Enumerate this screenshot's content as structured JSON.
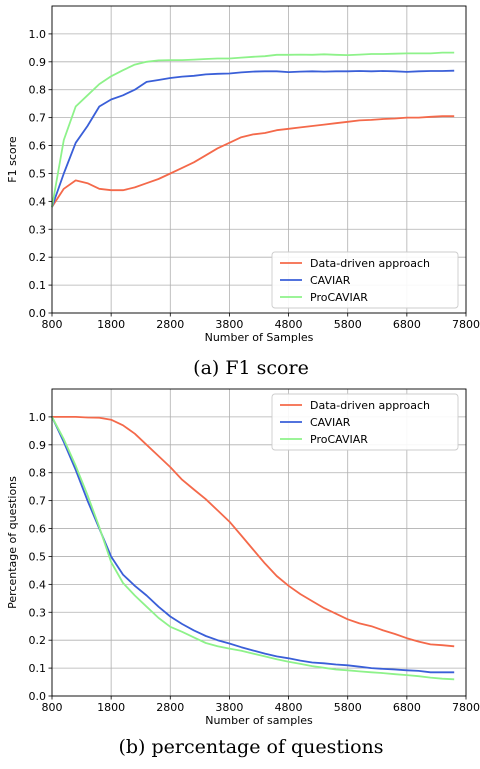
{
  "chart_data": [
    {
      "type": "line",
      "caption": "(a) F1 score",
      "title": "",
      "xlabel": "Number of Samples",
      "ylabel": "F1 score",
      "xlim": [
        800,
        7800
      ],
      "ylim": [
        0.0,
        1.1
      ],
      "xticks": [
        800,
        1800,
        2800,
        3800,
        4800,
        5800,
        6800,
        7800
      ],
      "yticks": [
        0.0,
        0.1,
        0.2,
        0.3,
        0.4,
        0.5,
        0.6,
        0.7,
        0.8,
        0.9,
        1.0
      ],
      "grid": true,
      "legend_position": "lower-right",
      "series": [
        {
          "name": "Data-driven approach",
          "color": "#f4694a",
          "x": [
            800,
            1000,
            1200,
            1400,
            1600,
            1800,
            2000,
            2200,
            2400,
            2600,
            2800,
            3000,
            3200,
            3400,
            3600,
            3800,
            4000,
            4200,
            4400,
            4600,
            4800,
            5000,
            5200,
            5400,
            5600,
            5800,
            6000,
            6200,
            6400,
            6600,
            6800,
            7000,
            7200,
            7400,
            7600
          ],
          "y": [
            0.38,
            0.445,
            0.475,
            0.465,
            0.445,
            0.44,
            0.44,
            0.45,
            0.465,
            0.48,
            0.5,
            0.52,
            0.54,
            0.565,
            0.59,
            0.61,
            0.63,
            0.64,
            0.645,
            0.655,
            0.66,
            0.665,
            0.67,
            0.675,
            0.68,
            0.685,
            0.69,
            0.692,
            0.695,
            0.697,
            0.7,
            0.7,
            0.703,
            0.705,
            0.705
          ]
        },
        {
          "name": "CAVIAR",
          "color": "#3a5fd8",
          "x": [
            800,
            1000,
            1200,
            1400,
            1600,
            1800,
            2000,
            2200,
            2400,
            2600,
            2800,
            3000,
            3200,
            3400,
            3600,
            3800,
            4000,
            4200,
            4400,
            4600,
            4800,
            5000,
            5200,
            5400,
            5600,
            5800,
            6000,
            6200,
            6400,
            6600,
            6800,
            7000,
            7200,
            7400,
            7600
          ],
          "y": [
            0.38,
            0.5,
            0.61,
            0.67,
            0.74,
            0.765,
            0.78,
            0.8,
            0.828,
            0.835,
            0.842,
            0.847,
            0.85,
            0.855,
            0.857,
            0.858,
            0.862,
            0.865,
            0.866,
            0.866,
            0.863,
            0.865,
            0.866,
            0.865,
            0.866,
            0.866,
            0.867,
            0.866,
            0.867,
            0.866,
            0.864,
            0.866,
            0.867,
            0.867,
            0.868
          ]
        },
        {
          "name": "ProCAVIAR",
          "color": "#8ef28a",
          "x": [
            800,
            1000,
            1200,
            1400,
            1600,
            1800,
            2000,
            2200,
            2400,
            2600,
            2800,
            3000,
            3200,
            3400,
            3600,
            3800,
            4000,
            4200,
            4400,
            4600,
            4800,
            5000,
            5200,
            5400,
            5600,
            5800,
            6000,
            6200,
            6400,
            6600,
            6800,
            7000,
            7200,
            7400,
            7600
          ],
          "y": [
            0.38,
            0.62,
            0.74,
            0.78,
            0.82,
            0.848,
            0.87,
            0.89,
            0.9,
            0.905,
            0.906,
            0.906,
            0.908,
            0.91,
            0.912,
            0.912,
            0.915,
            0.918,
            0.92,
            0.925,
            0.925,
            0.926,
            0.925,
            0.927,
            0.925,
            0.924,
            0.926,
            0.928,
            0.928,
            0.929,
            0.93,
            0.93,
            0.93,
            0.933,
            0.933
          ]
        }
      ]
    },
    {
      "type": "line",
      "caption": "(b) percentage of questions",
      "title": "",
      "xlabel": "Number of samples",
      "ylabel": "Percentage of questions",
      "xlim": [
        800,
        7800
      ],
      "ylim": [
        0.0,
        1.1
      ],
      "xticks": [
        800,
        1800,
        2800,
        3800,
        4800,
        5800,
        6800,
        7800
      ],
      "yticks": [
        0.0,
        0.1,
        0.2,
        0.3,
        0.4,
        0.5,
        0.6,
        0.7,
        0.8,
        0.9,
        1.0
      ],
      "grid": true,
      "legend_position": "upper-right",
      "series": [
        {
          "name": "Data-driven approach",
          "color": "#f4694a",
          "x": [
            800,
            1000,
            1200,
            1400,
            1600,
            1800,
            2000,
            2200,
            2400,
            2600,
            2800,
            3000,
            3200,
            3400,
            3600,
            3800,
            4000,
            4200,
            4400,
            4600,
            4800,
            5000,
            5200,
            5400,
            5600,
            5800,
            6000,
            6200,
            6400,
            6600,
            6800,
            7000,
            7200,
            7400,
            7600
          ],
          "y": [
            1.0,
            1.0,
            1.0,
            0.998,
            0.997,
            0.99,
            0.97,
            0.94,
            0.9,
            0.86,
            0.82,
            0.775,
            0.74,
            0.705,
            0.665,
            0.625,
            0.575,
            0.525,
            0.475,
            0.43,
            0.395,
            0.365,
            0.34,
            0.315,
            0.295,
            0.275,
            0.26,
            0.25,
            0.235,
            0.222,
            0.207,
            0.195,
            0.185,
            0.182,
            0.178
          ]
        },
        {
          "name": "CAVIAR",
          "color": "#3a5fd8",
          "x": [
            800,
            1000,
            1200,
            1400,
            1600,
            1800,
            2000,
            2200,
            2400,
            2600,
            2800,
            3000,
            3200,
            3400,
            3600,
            3800,
            4000,
            4200,
            4400,
            4600,
            4800,
            5000,
            5200,
            5400,
            5600,
            5800,
            6000,
            6200,
            6400,
            6600,
            6800,
            7000,
            7200,
            7400,
            7600
          ],
          "y": [
            1.0,
            0.91,
            0.81,
            0.7,
            0.6,
            0.5,
            0.435,
            0.395,
            0.36,
            0.32,
            0.285,
            0.258,
            0.235,
            0.215,
            0.2,
            0.188,
            0.175,
            0.163,
            0.152,
            0.142,
            0.135,
            0.127,
            0.12,
            0.117,
            0.113,
            0.11,
            0.105,
            0.1,
            0.097,
            0.095,
            0.092,
            0.09,
            0.085,
            0.085,
            0.085
          ]
        },
        {
          "name": "ProCAVIAR",
          "color": "#8ef28a",
          "x": [
            800,
            1000,
            1200,
            1400,
            1600,
            1800,
            2000,
            2200,
            2400,
            2600,
            2800,
            3000,
            3200,
            3400,
            3600,
            3800,
            4000,
            4200,
            4400,
            4600,
            4800,
            5000,
            5200,
            5400,
            5600,
            5800,
            6000,
            6200,
            6400,
            6600,
            6800,
            7000,
            7200,
            7400,
            7600
          ],
          "y": [
            1.0,
            0.92,
            0.825,
            0.72,
            0.605,
            0.48,
            0.405,
            0.36,
            0.32,
            0.28,
            0.248,
            0.23,
            0.21,
            0.19,
            0.178,
            0.17,
            0.162,
            0.152,
            0.142,
            0.132,
            0.123,
            0.115,
            0.107,
            0.101,
            0.095,
            0.092,
            0.088,
            0.085,
            0.082,
            0.078,
            0.075,
            0.071,
            0.066,
            0.062,
            0.06
          ]
        }
      ]
    }
  ]
}
